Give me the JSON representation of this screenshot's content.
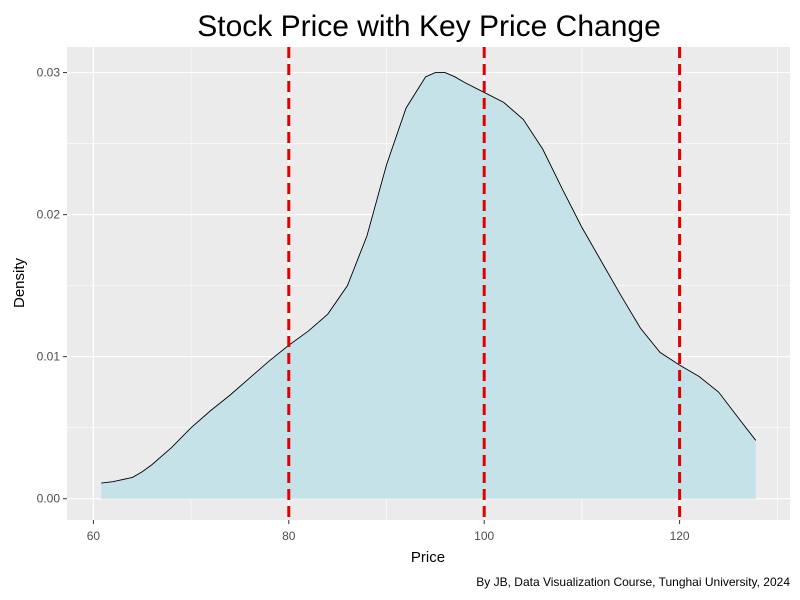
{
  "chart_data": {
    "type": "area",
    "title": "Stock Price with Key Price Change",
    "xlabel": "Price",
    "ylabel": "Density",
    "caption": "By JB, Data Visualization Course, Tunghai University, 2024",
    "xlim": [
      57.3,
      131.3
    ],
    "ylim": [
      -0.0015,
      0.0318
    ],
    "x_ticks": [
      60,
      80,
      100,
      120
    ],
    "y_ticks": [
      0.0,
      0.01,
      0.02,
      0.03
    ],
    "x_tick_labels": [
      "60",
      "80",
      "100",
      "120"
    ],
    "y_tick_labels": [
      "0.00",
      "0.01",
      "0.02",
      "0.03"
    ],
    "grid": true,
    "fill_color": "#c6e2e9",
    "line_color": "#000000",
    "vline_color": "#e00000",
    "background_color": "#ebebeb",
    "vlines": [
      80,
      100,
      120
    ],
    "series": [
      {
        "x": [
          60.8,
          62,
          64,
          65,
          66,
          68,
          70,
          72,
          74,
          76,
          78,
          80,
          82,
          84,
          86,
          88,
          90,
          92,
          94,
          95,
          96,
          97,
          98,
          100,
          102,
          104,
          106,
          108,
          110,
          112,
          114,
          116,
          118,
          120,
          122,
          124,
          126,
          127.8
        ],
        "y": [
          0.0011,
          0.0012,
          0.0015,
          0.0019,
          0.0024,
          0.0036,
          0.005,
          0.0062,
          0.0073,
          0.0085,
          0.0097,
          0.0108,
          0.0118,
          0.013,
          0.015,
          0.0185,
          0.0235,
          0.0275,
          0.0297,
          0.03,
          0.03,
          0.0297,
          0.0293,
          0.0286,
          0.0279,
          0.0267,
          0.0246,
          0.0218,
          0.0191,
          0.0167,
          0.0143,
          0.012,
          0.0103,
          0.0094,
          0.0086,
          0.0075,
          0.0057,
          0.0041
        ]
      }
    ]
  }
}
